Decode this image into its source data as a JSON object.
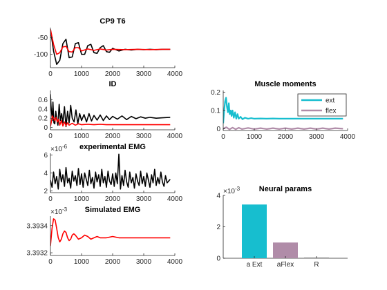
{
  "figure": {
    "background": "#ffffff"
  },
  "chart_data": [
    {
      "id": "cp9",
      "type": "line",
      "title": "CP9 T6",
      "xlim": [
        0,
        4000
      ],
      "ylim": [
        -140,
        -20
      ],
      "xticks": [
        0,
        1000,
        2000,
        3000,
        4000
      ],
      "xtick_labels": [
        "0",
        "1000",
        "2000",
        "3000",
        "4000"
      ],
      "yticks": [
        -100,
        -50
      ],
      "ytick_labels": [
        "-100",
        "-50"
      ],
      "exponent": "",
      "legend": [],
      "series": [
        {
          "color": "#000000",
          "x": [
            0,
            100,
            200,
            300,
            400,
            500,
            600,
            700,
            800,
            900,
            1000,
            1100,
            1200,
            1300,
            1400,
            1500,
            1600,
            1700,
            1800,
            1900,
            2000,
            2200,
            2400,
            2600,
            2800,
            3000,
            3200,
            3400,
            3600,
            3850
          ],
          "y": [
            -25,
            -90,
            -130,
            -118,
            -68,
            -55,
            -110,
            -108,
            -68,
            -65,
            -100,
            -100,
            -74,
            -70,
            -95,
            -97,
            -80,
            -74,
            -92,
            -94,
            -82,
            -90,
            -85,
            -87,
            -85,
            -86,
            -85,
            -86,
            -85,
            -85
          ]
        },
        {
          "color": "#ff0000",
          "x": [
            0,
            100,
            200,
            300,
            400,
            500,
            600,
            700,
            800,
            900,
            1000,
            1200,
            1400,
            1600,
            1800,
            2000,
            2400,
            2800,
            3200,
            3600,
            3850
          ],
          "y": [
            -25,
            -70,
            -100,
            -95,
            -78,
            -76,
            -92,
            -93,
            -80,
            -80,
            -90,
            -84,
            -88,
            -84,
            -87,
            -85,
            -86,
            -85,
            -86,
            -85,
            -85
          ]
        }
      ]
    },
    {
      "id": "id",
      "type": "line",
      "title": "ID",
      "xlim": [
        0,
        4000
      ],
      "ylim": [
        -0.05,
        0.8
      ],
      "xticks": [
        0,
        1000,
        2000,
        3000,
        4000
      ],
      "xtick_labels": [
        "0",
        "1000",
        "2000",
        "3000",
        "4000"
      ],
      "yticks": [
        0,
        0.2,
        0.4,
        0.6
      ],
      "ytick_labels": [
        "0",
        "0.2",
        "0.4",
        "0.6"
      ],
      "exponent": "",
      "legend": [],
      "series": [
        {
          "color": "#000000",
          "x": [
            0,
            20,
            40,
            60,
            80,
            110,
            140,
            170,
            200,
            240,
            280,
            320,
            360,
            400,
            450,
            500,
            550,
            600,
            650,
            700,
            760,
            820,
            880,
            940,
            1000,
            1080,
            1160,
            1240,
            1320,
            1400,
            1500,
            1600,
            1700,
            1800,
            1900,
            2000,
            2150,
            2300,
            2450,
            2600,
            2750,
            2900,
            3050,
            3200,
            3400,
            3600,
            3850
          ],
          "y": [
            0.72,
            0.45,
            0.3,
            0.15,
            0.55,
            0.1,
            0.08,
            0.35,
            0.2,
            0.05,
            0.5,
            0.15,
            0.3,
            0.1,
            0.45,
            0.02,
            0.35,
            0.1,
            0.48,
            0.2,
            0.12,
            0.38,
            0.08,
            0.3,
            0.15,
            0.28,
            0.12,
            0.3,
            0.14,
            0.26,
            0.16,
            0.27,
            0.15,
            0.25,
            0.17,
            0.24,
            0.18,
            0.25,
            0.17,
            0.24,
            0.19,
            0.23,
            0.2,
            0.22,
            0.2,
            0.21,
            0.22
          ]
        },
        {
          "color": "#ff0000",
          "x": [
            0,
            30,
            60,
            100,
            140,
            180,
            220,
            260,
            300,
            350,
            400,
            450,
            500,
            550,
            600,
            700,
            800,
            900,
            1000,
            1200,
            1400,
            1600,
            1800,
            2000,
            2400,
            2800,
            3200,
            3600,
            3850
          ],
          "y": [
            0.02,
            0.12,
            0.25,
            0.2,
            0.15,
            0.22,
            0.12,
            0.18,
            0.05,
            0.15,
            0.03,
            0.12,
            0.04,
            0.1,
            0.05,
            0.09,
            0.05,
            0.08,
            0.06,
            0.07,
            0.06,
            0.07,
            0.06,
            0.06,
            0.06,
            0.06,
            0.06,
            0.06,
            0.06
          ]
        }
      ]
    },
    {
      "id": "expemg",
      "type": "line",
      "title": "experimental EMG",
      "xlim": [
        0,
        4000
      ],
      "ylim": [
        1.8,
        6.2
      ],
      "xticks": [
        0,
        1000,
        2000,
        3000,
        4000
      ],
      "xtick_labels": [
        "0",
        "1000",
        "2000",
        "3000",
        "4000"
      ],
      "yticks": [
        2,
        4,
        6
      ],
      "ytick_labels": [
        "2",
        "4",
        "6"
      ],
      "exponent": "-6",
      "legend": [],
      "series": [
        {
          "color": "#000000",
          "x": [
            0,
            50,
            100,
            150,
            200,
            250,
            300,
            350,
            400,
            450,
            500,
            550,
            600,
            650,
            700,
            750,
            800,
            850,
            900,
            950,
            1000,
            1050,
            1100,
            1150,
            1200,
            1250,
            1300,
            1350,
            1400,
            1450,
            1500,
            1550,
            1600,
            1650,
            1700,
            1750,
            1800,
            1850,
            1900,
            1950,
            2000,
            2050,
            2100,
            2150,
            2200,
            2250,
            2300,
            2350,
            2400,
            2450,
            2500,
            2550,
            2600,
            2650,
            2700,
            2750,
            2800,
            2850,
            2900,
            2950,
            3000,
            3050,
            3100,
            3150,
            3200,
            3250,
            3300,
            3350,
            3400,
            3450,
            3500,
            3550,
            3600,
            3650,
            3700,
            3750,
            3850
          ],
          "y": [
            3.2,
            2.4,
            4.1,
            2.8,
            3.6,
            2.2,
            4.4,
            3.0,
            3.8,
            2.5,
            4.6,
            2.9,
            3.4,
            2.3,
            4.2,
            3.1,
            3.7,
            2.6,
            4.5,
            2.7,
            3.9,
            2.4,
            4.0,
            3.3,
            2.6,
            4.3,
            2.8,
            3.5,
            2.3,
            4.1,
            3.0,
            3.8,
            2.5,
            4.4,
            2.9,
            3.6,
            2.4,
            4.2,
            3.1,
            2.7,
            3.9,
            2.5,
            4.0,
            2.8,
            6.1,
            2.2,
            3.7,
            2.6,
            4.3,
            3.0,
            2.4,
            4.1,
            2.9,
            3.5,
            2.3,
            3.9,
            3.1,
            2.6,
            4.2,
            2.8,
            3.6,
            2.5,
            4.0,
            3.2,
            2.4,
            3.8,
            2.9,
            4.4,
            2.6,
            3.5,
            2.8,
            4.1,
            3.0,
            2.5,
            3.7,
            2.9,
            3.3
          ]
        }
      ]
    },
    {
      "id": "simemg",
      "type": "line",
      "title": "Simulated EMG",
      "xlim": [
        0,
        4000
      ],
      "ylim": [
        3.39318,
        3.39347
      ],
      "xticks": [
        0,
        1000,
        2000,
        3000,
        4000
      ],
      "xtick_labels": [
        "0",
        "1000",
        "2000",
        "3000",
        "4000"
      ],
      "yticks": [
        3.3932,
        3.3934
      ],
      "ytick_labels": [
        "3.3932",
        "3.3934"
      ],
      "exponent": "-3",
      "legend": [],
      "series": [
        {
          "color": "#ff0000",
          "x": [
            0,
            50,
            100,
            150,
            200,
            250,
            300,
            350,
            400,
            450,
            500,
            550,
            600,
            650,
            700,
            750,
            800,
            900,
            1000,
            1100,
            1200,
            1300,
            1400,
            1500,
            1600,
            1800,
            2000,
            2200,
            2400,
            2800,
            3200,
            3600,
            3850
          ],
          "y": [
            3.39325,
            3.39338,
            3.39345,
            3.39344,
            3.39338,
            3.39331,
            3.39328,
            3.3933,
            3.39334,
            3.39336,
            3.39335,
            3.39331,
            3.39329,
            3.3933,
            3.39333,
            3.39334,
            3.39333,
            3.3933,
            3.39331,
            3.39333,
            3.39332,
            3.3933,
            3.39331,
            3.39332,
            3.39331,
            3.39331,
            3.39332,
            3.39331,
            3.39331,
            3.39331,
            3.39331,
            3.39331,
            3.39331
          ]
        }
      ]
    },
    {
      "id": "moments",
      "type": "line",
      "title": "Muscle moments",
      "xlim": [
        0,
        4000
      ],
      "ylim": [
        -0.01,
        0.21
      ],
      "xticks": [
        0,
        1000,
        2000,
        3000,
        4000
      ],
      "xtick_labels": [
        "0",
        "1000",
        "2000",
        "3000",
        "4000"
      ],
      "yticks": [
        0,
        0.1,
        0.2
      ],
      "ytick_labels": [
        "0",
        "0.1",
        "0.2"
      ],
      "exponent": "",
      "legend": [
        "ext",
        "flex"
      ],
      "series": [
        {
          "name": "ext",
          "color": "#17becf",
          "width": 2.2,
          "x": [
            0,
            30,
            60,
            90,
            120,
            150,
            180,
            210,
            240,
            270,
            300,
            340,
            380,
            420,
            460,
            500,
            560,
            620,
            700,
            800,
            900,
            1000,
            1200,
            1400,
            1600,
            1800,
            2000,
            2400,
            2800,
            3200,
            3600,
            3850
          ],
          "y": [
            0.03,
            0.1,
            0.15,
            0.17,
            0.12,
            0.09,
            0.14,
            0.08,
            0.1,
            0.07,
            0.1,
            0.06,
            0.09,
            0.055,
            0.08,
            0.055,
            0.065,
            0.052,
            0.06,
            0.055,
            0.058,
            0.055,
            0.056,
            0.055,
            0.056,
            0.055,
            0.055,
            0.055,
            0.055,
            0.055,
            0.055,
            0.055
          ]
        },
        {
          "name": "flex",
          "color": "#b08ca8",
          "width": 2.2,
          "x": [
            0,
            100,
            200,
            300,
            400,
            500,
            600,
            800,
            1000,
            1200,
            1400,
            1600,
            1800,
            2000,
            2200,
            2400,
            2600,
            2800,
            3000,
            3200,
            3400,
            3600,
            3850
          ],
          "y": [
            0.0,
            0.008,
            -0.004,
            0.006,
            -0.003,
            0.005,
            -0.002,
            0.004,
            -0.002,
            0.003,
            -0.002,
            0.003,
            -0.002,
            0.003,
            -0.002,
            0.003,
            -0.002,
            0.003,
            -0.002,
            0.003,
            -0.002,
            0.003,
            0.0
          ]
        }
      ]
    },
    {
      "id": "neural",
      "type": "bar",
      "title": "Neural params",
      "categories": [
        "a Ext",
        "aFlex",
        "R"
      ],
      "values": [
        3.42,
        1.0,
        0.07
      ],
      "colors": [
        "#17becf",
        "#b08ca8",
        "#b5b5b5"
      ],
      "ylim": [
        0,
        4
      ],
      "yticks": [
        0,
        2,
        4
      ],
      "ytick_labels": [
        "0",
        "2",
        "4"
      ],
      "exponent": "-3",
      "legend": []
    }
  ]
}
